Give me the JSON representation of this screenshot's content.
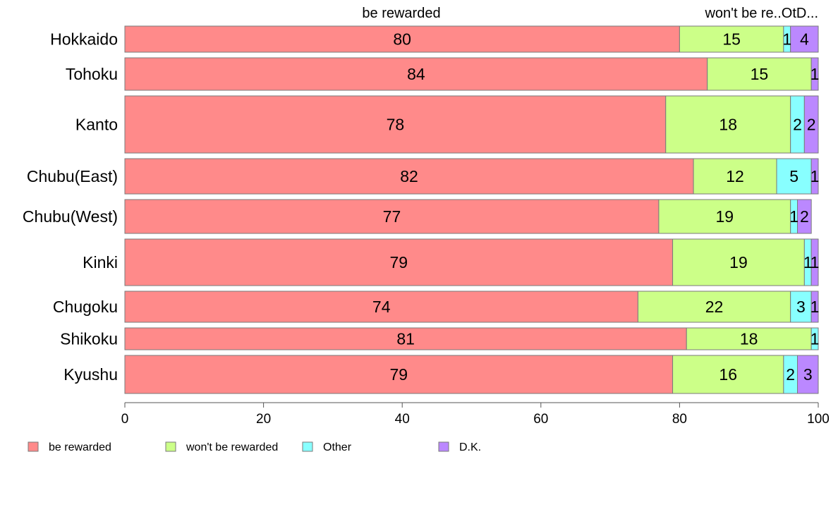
{
  "chart_data": {
    "type": "bar",
    "orientation": "horizontal",
    "stacked": true,
    "categories": [
      "Hokkaido",
      "Tohoku",
      "Kanto",
      "Chubu(East)",
      "Chubu(West)",
      "Kinki",
      "Chugoku",
      "Shikoku",
      "Kyushu"
    ],
    "series": [
      {
        "name": "be rewarded",
        "color": "#FF8A8A",
        "values": [
          80,
          84,
          78,
          82,
          77,
          79,
          74,
          81,
          79
        ],
        "labels": [
          "80",
          "84",
          "78",
          "82",
          "77",
          "79",
          "74",
          "81",
          "79"
        ]
      },
      {
        "name": "won't be rewarded",
        "color": "#CCFF88",
        "values": [
          15,
          15,
          18,
          12,
          19,
          19,
          22,
          18,
          16
        ],
        "labels": [
          "15",
          "15",
          "18",
          "12",
          "19",
          "19",
          "22",
          "18",
          "16"
        ]
      },
      {
        "name": "Other",
        "color": "#88FFFF",
        "values": [
          1,
          0,
          2,
          5,
          1,
          1,
          3,
          1,
          2
        ],
        "labels": [
          "1",
          "",
          "2",
          "5",
          "1",
          "1",
          "3",
          "1",
          "2"
        ]
      },
      {
        "name": "D.K.",
        "color": "#BB88FF",
        "values": [
          4,
          1,
          2,
          1,
          2,
          1,
          1,
          0,
          3
        ],
        "labels": [
          "4",
          "1",
          "2",
          "1",
          "2",
          "1",
          "1",
          "",
          "3"
        ]
      }
    ],
    "top_labels": [
      "be rewarded",
      "won't be re..OtD..."
    ],
    "xlim": [
      0,
      100
    ],
    "xticks": [
      "0",
      "20",
      "40",
      "60",
      "80",
      "100"
    ],
    "grid": false,
    "legend_position": "bottom"
  }
}
